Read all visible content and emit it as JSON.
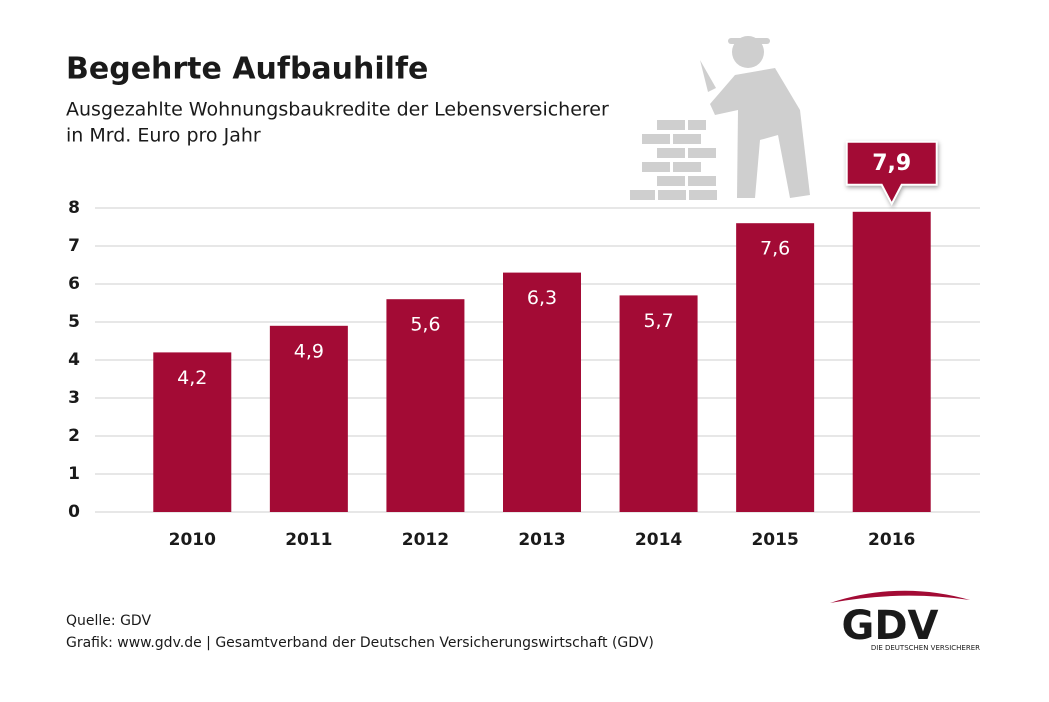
{
  "chart_data": {
    "type": "bar",
    "title": "Begehrte Aufbauhilfe",
    "subtitle": [
      "Ausgezahlte Wohnungsbaukredite der Lebensversicherer",
      "in Mrd. Euro pro Jahr"
    ],
    "categories": [
      "2010",
      "2011",
      "2012",
      "2013",
      "2014",
      "2015",
      "2016"
    ],
    "values": [
      4.2,
      4.9,
      5.6,
      6.3,
      5.7,
      7.6,
      7.9
    ],
    "value_labels": [
      "4,2",
      "4,9",
      "5,6",
      "6,3",
      "5,7",
      "7,6",
      "7,9"
    ],
    "color": "#a30b35",
    "ylim": [
      0,
      8
    ],
    "yticks": [
      0,
      1,
      2,
      3,
      4,
      5,
      6,
      7,
      8
    ],
    "grid": true,
    "footer": [
      "Quelle: GDV",
      "Grafik: www.gdv.de | Gesamtverband der Deutschen Versicherungswirtschaft (GDV)"
    ],
    "logo": {
      "name": "GDV",
      "tagline": "DIE DEUTSCHEN VERSICHERER"
    }
  }
}
